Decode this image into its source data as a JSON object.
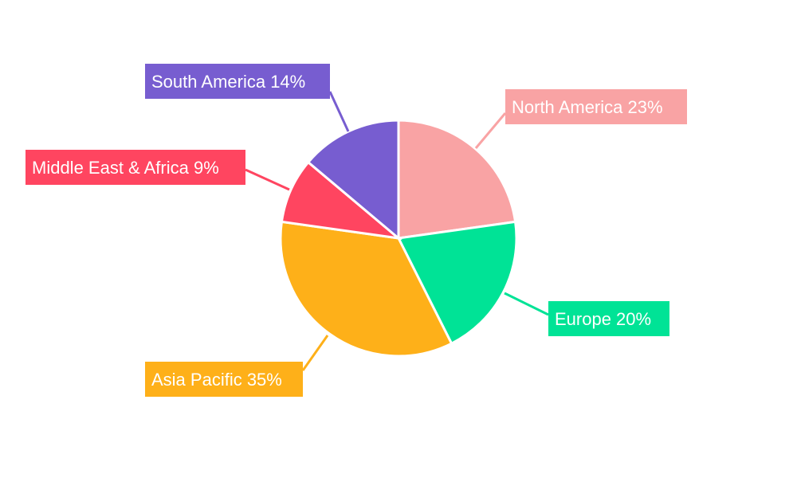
{
  "chart_data": {
    "type": "pie",
    "title": "",
    "start": "top",
    "direction": "clockwise",
    "slices": [
      {
        "label": "North America",
        "value": 23,
        "display": "North America 23%",
        "color": "#f9a3a4"
      },
      {
        "label": "Europe",
        "value": 20,
        "display": "Europe 20%",
        "color": "#00e396"
      },
      {
        "label": "Asia Pacific",
        "value": 35,
        "display": "Asia Pacific 35%",
        "color": "#feb019"
      },
      {
        "label": "Middle East & Africa",
        "value": 9,
        "display": "Middle East & Africa 9%",
        "color": "#ff4560"
      },
      {
        "label": "South America",
        "value": 14,
        "display": "South America 14%",
        "color": "#775dd0"
      }
    ]
  }
}
